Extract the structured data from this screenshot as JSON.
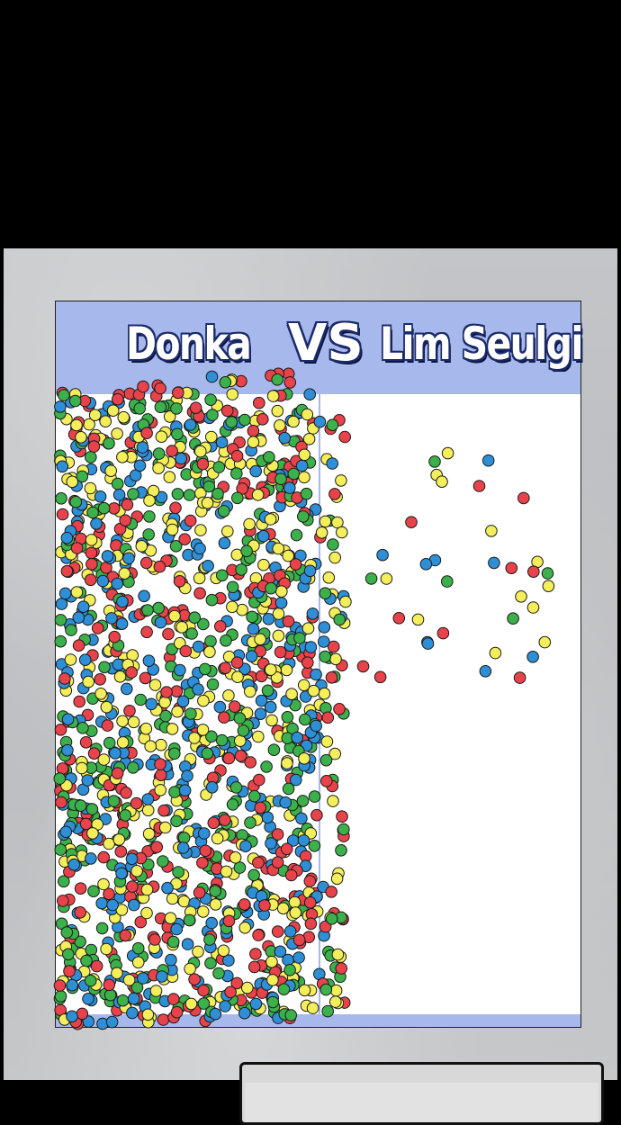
{
  "scoreboard": {
    "left_name": "Donka",
    "vs_label": "VS",
    "right_name": "Lim Seulgi"
  },
  "colors": {
    "header_band": "#a6b8ec",
    "ball_red": "#e8434a",
    "ball_green": "#3cb04a",
    "ball_blue": "#2f8fd6",
    "ball_yellow": "#f4ee5a",
    "outline": "#1a1a1a"
  },
  "balls": {
    "left_count_approx": 1500,
    "right_count_approx": 36
  }
}
